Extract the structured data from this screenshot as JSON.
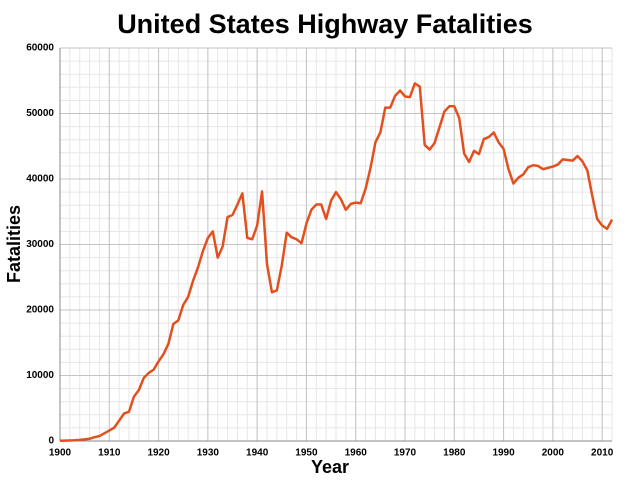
{
  "chart_data": {
    "type": "line",
    "title": "United States Highway Fatalities",
    "x_label": "Year",
    "y_label": "Fatalities",
    "x": [
      1900,
      1901,
      1902,
      1903,
      1904,
      1905,
      1906,
      1907,
      1908,
      1909,
      1910,
      1911,
      1912,
      1913,
      1914,
      1915,
      1916,
      1917,
      1918,
      1919,
      1920,
      1921,
      1922,
      1923,
      1924,
      1925,
      1926,
      1927,
      1928,
      1929,
      1930,
      1931,
      1932,
      1933,
      1934,
      1935,
      1936,
      1937,
      1938,
      1939,
      1940,
      1941,
      1942,
      1943,
      1944,
      1945,
      1946,
      1947,
      1948,
      1949,
      1950,
      1951,
      1952,
      1953,
      1954,
      1955,
      1956,
      1957,
      1958,
      1959,
      1960,
      1961,
      1962,
      1963,
      1964,
      1965,
      1966,
      1967,
      1968,
      1969,
      1970,
      1971,
      1972,
      1973,
      1974,
      1975,
      1976,
      1977,
      1978,
      1979,
      1980,
      1981,
      1982,
      1983,
      1984,
      1985,
      1986,
      1987,
      1988,
      1989,
      1990,
      1991,
      1992,
      1993,
      1994,
      1995,
      1996,
      1997,
      1998,
      1999,
      2000,
      2001,
      2002,
      2003,
      2004,
      2005,
      2006,
      2007,
      2008,
      2009,
      2010,
      2011,
      2012
    ],
    "series": [
      {
        "name": "Fatalities",
        "color": "#e2501f",
        "values": [
          36,
          54,
          79,
          117,
          172,
          252,
          338,
          581,
          751,
          1174,
          1599,
          2043,
          3100,
          4200,
          4468,
          6779,
          7766,
          9630,
          10390,
          10896,
          12155,
          13253,
          14859,
          17870,
          18400,
          20771,
          22000,
          24470,
          26500,
          29000,
          31000,
          32000,
          28000,
          29700,
          34200,
          34500,
          36100,
          37800,
          31000,
          30800,
          32900,
          38100,
          27000,
          22700,
          23000,
          26800,
          31800,
          31100,
          30800,
          30200,
          33200,
          35300,
          36100,
          36100,
          33900,
          36700,
          38000,
          36900,
          35300,
          36200,
          36400,
          36300,
          38500,
          41700,
          45600,
          47100,
          50900,
          50900,
          52700,
          53500,
          52600,
          52500,
          54600,
          54100,
          45200,
          44500,
          45500,
          47900,
          50300,
          51100,
          51100,
          49300,
          43900,
          42600,
          44300,
          43800,
          46100,
          46400,
          47100,
          45600,
          44600,
          41500,
          39300,
          40200,
          40700,
          41800,
          42100,
          42000,
          41500,
          41700,
          41900,
          42200,
          43000,
          42900,
          42800,
          43500,
          42700,
          41300,
          37400,
          33900,
          32900,
          32400,
          33800
        ]
      }
    ],
    "xlim": [
      1900,
      2012
    ],
    "ylim": [
      0,
      60000
    ],
    "xticks": [
      1900,
      1910,
      1920,
      1930,
      1940,
      1950,
      1960,
      1970,
      1980,
      1990,
      2000,
      2010
    ],
    "yticks": [
      0,
      10000,
      20000,
      30000,
      40000,
      50000,
      60000
    ],
    "grid": true,
    "minor_grid": true
  }
}
